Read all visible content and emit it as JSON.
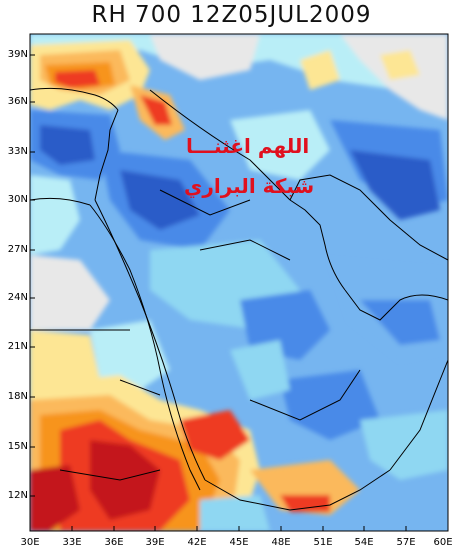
{
  "title": "RH 700 12Z05JUL2009",
  "overlay": {
    "line1": "اللهم اغثنـــا",
    "line2": "شبكة البراري",
    "color": "#e0101e"
  },
  "palette": {
    "dark_red": "#c4141c",
    "red": "#ee3a22",
    "orange": "#f7941d",
    "light_orange": "#fbb95c",
    "yellow": "#fde694",
    "light_gray": "#e8e8e8",
    "pale_cyan": "#b9eef7",
    "cyan": "#8fd7f2",
    "light_blue": "#76b5f0",
    "blue": "#4a8ae8",
    "dark_blue": "#2a5cc8"
  },
  "y_ticks": [
    "39N",
    "36N",
    "33N",
    "30N",
    "27N",
    "24N",
    "21N",
    "18N",
    "15N",
    "12N"
  ],
  "x_ticks": [
    "30E",
    "33E",
    "36E",
    "39E",
    "42E",
    "45E",
    "48E",
    "51E",
    "54E",
    "57E",
    "60E"
  ]
}
